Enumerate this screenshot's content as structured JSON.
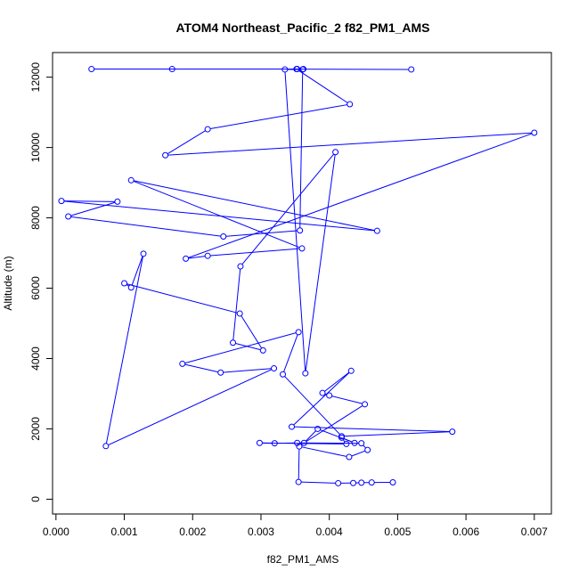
{
  "chart_data": {
    "type": "line",
    "title": "ATOM4 Northeast_Pacific_2 f82_PM1_AMS",
    "xlabel": "f82_PM1_AMS",
    "ylabel": "Altitude (m)",
    "xlim": [
      -5e-05,
      0.00725
    ],
    "ylim": [
      -420,
      12700
    ],
    "x_ticks": [
      0,
      0.001,
      0.002,
      0.003,
      0.004,
      0.005,
      0.006,
      0.007
    ],
    "x_tick_labels": [
      "0.000",
      "0.001",
      "0.002",
      "0.003",
      "0.004",
      "0.005",
      "0.006",
      "0.007"
    ],
    "y_ticks": [
      0,
      2000,
      4000,
      6000,
      8000,
      10000,
      12000
    ],
    "y_tick_labels": [
      "0",
      "2000",
      "4000",
      "6000",
      "8000",
      "10000",
      "12000"
    ],
    "grid": false,
    "markers": "open-circle",
    "color": "#0000ff",
    "series": [
      {
        "x": [
          0.00493,
          0.00462,
          0.00447,
          0.00435,
          0.00413,
          0.00355,
          0.00356,
          0.00429,
          0.00456,
          0.00447,
          0.00353,
          0.0032,
          0.00298,
          0.00425,
          0.00418,
          0.00437,
          0.00383,
          0.00363,
          0.00452,
          0.004,
          0.0039,
          0.00432,
          0.00345,
          0.0058,
          0.00418,
          0.00332,
          0.00355,
          0.00185,
          0.00241,
          0.00319,
          0.00073,
          0.00128,
          0.0011,
          0.001,
          0.00269,
          0.00303,
          0.00259,
          0.0027,
          0.00409,
          0.00365,
          0.00335,
          0.00361,
          0.00357,
          0.00245,
          0.00018,
          0.0009,
          8e-05,
          0.0047,
          0.0011,
          0.0036,
          0.00222,
          0.0019,
          0.007,
          0.0016,
          0.00222,
          0.0043,
          0.00352,
          0.00362,
          0.00052,
          0.0017,
          0.00353,
          0.0052
        ],
        "y": [
          480,
          475,
          470,
          460,
          455,
          490,
          1500,
          1200,
          1400,
          1590,
          1600,
          1590,
          1600,
          1570,
          1750,
          1600,
          2000,
          1600,
          2700,
          2950,
          3020,
          3650,
          2060,
          1920,
          1790,
          3550,
          4750,
          3850,
          3600,
          3720,
          1510,
          6980,
          6020,
          6140,
          5280,
          4230,
          4450,
          6620,
          9870,
          3580,
          12220,
          12220,
          7640,
          7470,
          8040,
          8460,
          8480,
          7630,
          9070,
          7130,
          6920,
          6840,
          10420,
          9780,
          10520,
          11230,
          12230,
          12230,
          12230,
          12230,
          12230,
          12220
        ]
      }
    ]
  }
}
